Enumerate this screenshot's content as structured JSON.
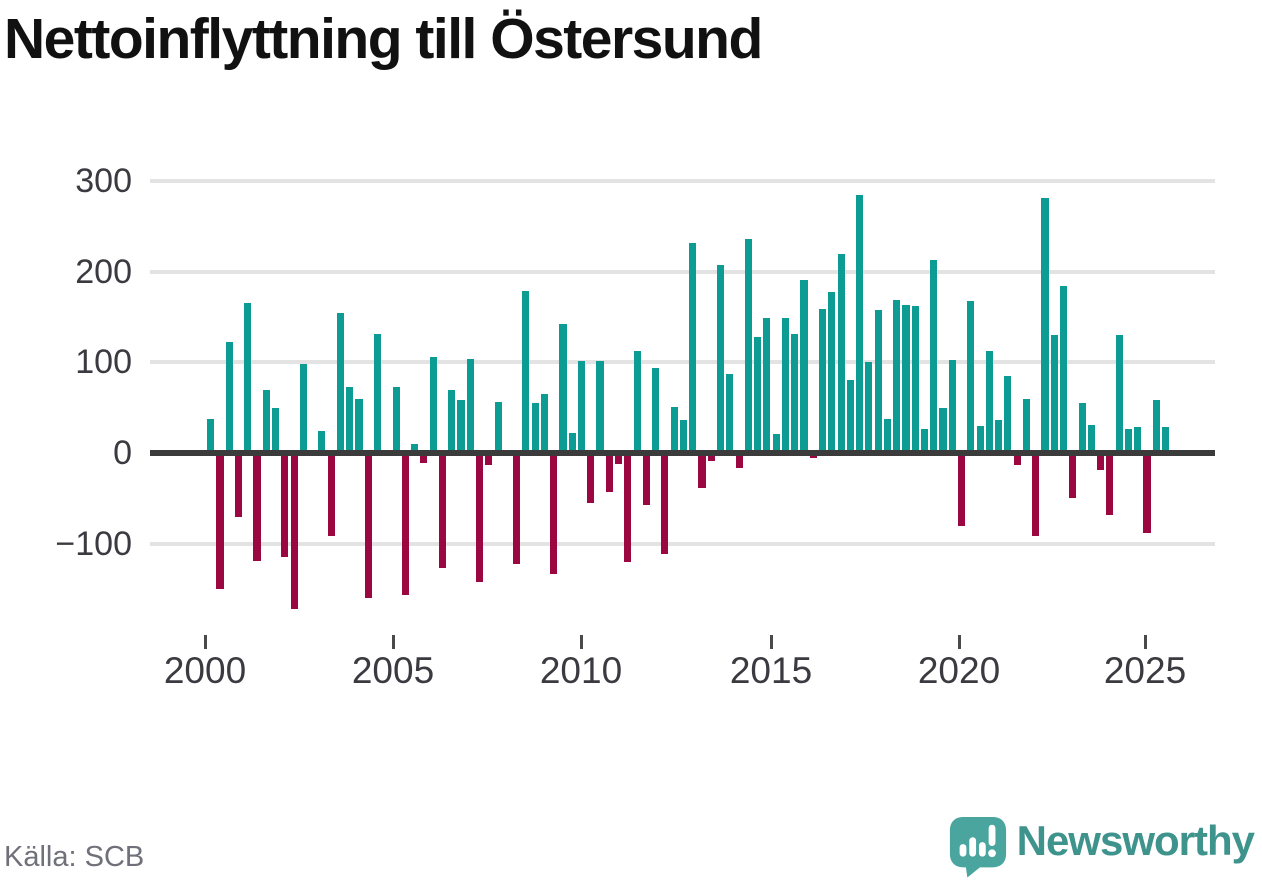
{
  "title": "Nettoinflyttning till Östersund",
  "source": {
    "label": "Källa: SCB"
  },
  "branding": {
    "name": "Newsworthy",
    "icon": "newsworthy-speech-bubble-barchart-icon"
  },
  "colors": {
    "positive_bar": "#0d9c94",
    "negative_bar": "#9a0741",
    "zero_axis": "#3b3b3b",
    "gridline": "#e3e3e3",
    "tick_label": "#3a3a40",
    "title_text": "#111111",
    "source_text": "#70707a",
    "brand_text": "#3e938c",
    "brand_icon": "#4aa59e"
  },
  "chart_data": {
    "type": "bar",
    "title": "Nettoinflyttning till Östersund",
    "xlabel": "",
    "ylabel": "",
    "grid": true,
    "legend": "none",
    "ylim": [
      -180,
      310
    ],
    "y_ticks": [
      300,
      200,
      100,
      0,
      -100
    ],
    "y_tick_labels": [
      "300",
      "200",
      "100",
      "0",
      "−100"
    ],
    "x_tick_labels": [
      "2000",
      "2005",
      "2010",
      "2015",
      "2020",
      "2025"
    ],
    "x": [
      "2000K1",
      "2000K2",
      "2000K3",
      "2000K4",
      "2001K1",
      "2001K2",
      "2001K3",
      "2001K4",
      "2002K1",
      "2002K2",
      "2002K3",
      "2002K4",
      "2003K1",
      "2003K2",
      "2003K3",
      "2003K4",
      "2004K1",
      "2004K2",
      "2004K3",
      "2004K4",
      "2005K1",
      "2005K2",
      "2005K3",
      "2005K4",
      "2006K1",
      "2006K2",
      "2006K3",
      "2006K4",
      "2007K1",
      "2007K2",
      "2007K3",
      "2007K4",
      "2008K1",
      "2008K2",
      "2008K3",
      "2008K4",
      "2009K1",
      "2009K2",
      "2009K3",
      "2009K4",
      "2010K1",
      "2010K2",
      "2010K3",
      "2010K4",
      "2011K1",
      "2011K2",
      "2011K3",
      "2011K4",
      "2012K1",
      "2012K2",
      "2012K3",
      "2012K4",
      "2013K1",
      "2013K2",
      "2013K3",
      "2013K4",
      "2014K1",
      "2014K2",
      "2014K3",
      "2014K4",
      "2015K1",
      "2015K2",
      "2015K3",
      "2015K4",
      "2016K1",
      "2016K2",
      "2016K3",
      "2016K4",
      "2017K1",
      "2017K2",
      "2017K3",
      "2017K4",
      "2018K1",
      "2018K2",
      "2018K3",
      "2018K4",
      "2019K1",
      "2019K2",
      "2019K3",
      "2019K4",
      "2020K1",
      "2020K2",
      "2020K3",
      "2020K4",
      "2021K1",
      "2021K2",
      "2021K3",
      "2021K4",
      "2022K1",
      "2022K2",
      "2022K3",
      "2022K4",
      "2023K1",
      "2023K2",
      "2023K3",
      "2023K4",
      "2024K1",
      "2024K2",
      "2024K3",
      "2024K4",
      "2025K1",
      "2025K2",
      "2025K3",
      "2025K4"
    ],
    "values": [
      38,
      -150,
      122,
      -70,
      166,
      -119,
      69,
      50,
      -115,
      -172,
      98,
      0,
      24,
      -92,
      155,
      73,
      60,
      -160,
      131,
      0,
      73,
      -157,
      10,
      -11,
      106,
      -127,
      70,
      58,
      104,
      -142,
      -13,
      56,
      -2,
      -122,
      179,
      55,
      65,
      -133,
      142,
      22,
      101,
      -55,
      101,
      -43,
      -12,
      -120,
      113,
      -57,
      94,
      -111,
      51,
      37,
      232,
      -38,
      -9,
      207,
      87,
      -16,
      236,
      128,
      149,
      21,
      149,
      131,
      191,
      -6,
      159,
      178,
      219,
      81,
      285,
      100,
      158,
      38,
      169,
      163,
      162,
      26,
      213,
      50,
      103,
      -80,
      168,
      30,
      112,
      37,
      85,
      -13,
      60,
      -91,
      281,
      130,
      184,
      -50,
      55,
      31,
      -19,
      -68,
      130,
      26,
      29,
      -88,
      59,
      29
    ]
  }
}
